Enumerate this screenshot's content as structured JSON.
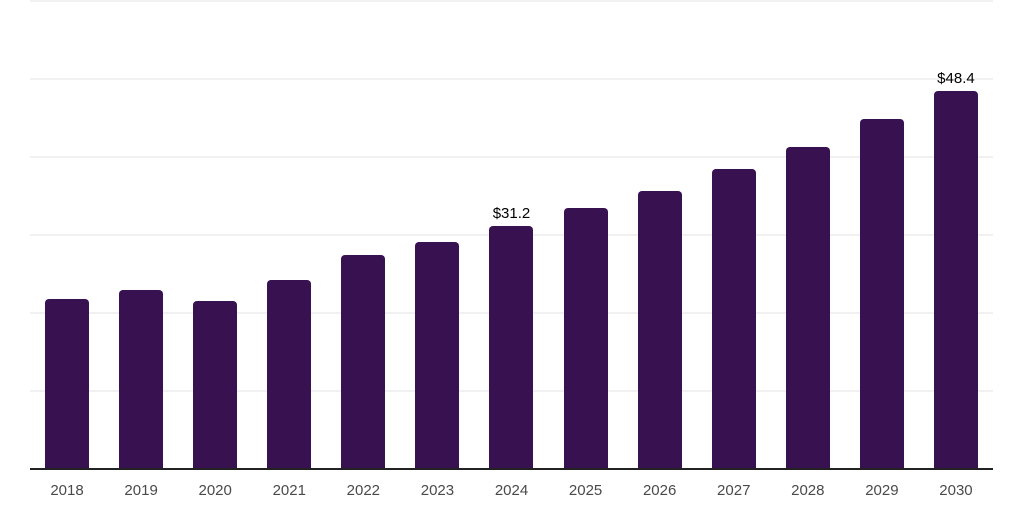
{
  "page": {
    "background_color": "#ffffff"
  },
  "chart_data": {
    "type": "bar",
    "title": "",
    "xlabel": "",
    "ylabel": "",
    "categories": [
      "2018",
      "2019",
      "2020",
      "2021",
      "2022",
      "2023",
      "2024",
      "2025",
      "2026",
      "2027",
      "2028",
      "2029",
      "2030"
    ],
    "values": [
      21.8,
      22.9,
      21.5,
      24.2,
      27.4,
      29.1,
      31.2,
      33.4,
      35.7,
      38.5,
      41.3,
      44.9,
      48.4
    ],
    "value_labels": [
      "",
      "",
      "",
      "",
      "",
      "",
      "$31.2",
      "",
      "",
      "",
      "",
      "",
      "$48.4"
    ],
    "ylim": [
      0,
      60
    ],
    "grid": {
      "horizontal": true,
      "interval": 10,
      "color": "#f1f1f4"
    },
    "legend": "none",
    "y_axis_labels_visible": false,
    "colors": {
      "bar": "#371150",
      "axis_line": "#222222",
      "tick_label": "#4a4a4a",
      "data_label": "#000000",
      "grid": "#f1f1f4",
      "background": "#ffffff"
    }
  }
}
